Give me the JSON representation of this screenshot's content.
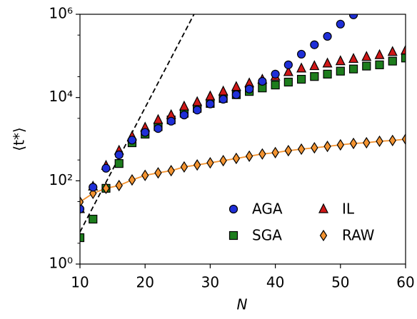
{
  "chart_data": {
    "type": "scatter",
    "xlabel": "N",
    "ylabel": "⟨t*⟩",
    "log_y": true,
    "x": [
      10,
      12,
      14,
      16,
      18,
      20,
      22,
      24,
      26,
      28,
      30,
      32,
      34,
      36,
      38,
      40,
      42,
      44,
      46,
      48,
      50,
      52,
      54,
      56,
      58,
      60
    ],
    "xlim": [
      10,
      60
    ],
    "xticks": [
      10,
      20,
      30,
      40,
      50,
      60
    ],
    "ylim": [
      1,
      1000000
    ],
    "yticks": [
      {
        "value": 1,
        "label": "10⁰"
      },
      {
        "value": 100,
        "label": "10²"
      },
      {
        "value": 10000,
        "label": "10⁴"
      },
      {
        "value": 1000000,
        "label": "10⁶"
      }
    ],
    "legend": "lower right",
    "series": [
      {
        "name": "AGA",
        "color": "#1f2fd8",
        "marker": "circle",
        "values": [
          21,
          70,
          200,
          420,
          950,
          1450,
          1800,
          2700,
          3800,
          5000,
          7000,
          9100,
          11700,
          16000,
          24500,
          36500,
          61000,
          110000,
          185000,
          295000,
          580000,
          970000,
          null,
          null,
          null,
          null
        ]
      },
      {
        "name": "SGA",
        "color": "#1d7d1d",
        "marker": "square",
        "values": [
          4.3,
          12,
          66,
          260,
          820,
          1320,
          2000,
          2900,
          4200,
          5500,
          7200,
          9500,
          11700,
          14000,
          17000,
          20000,
          23500,
          27500,
          32000,
          36500,
          43000,
          48500,
          57000,
          61000,
          75000,
          89000
        ]
      },
      {
        "name": "IL",
        "color": "#d01818",
        "marker": "triangle",
        "values": [
          21,
          73,
          230,
          530,
          1170,
          1900,
          2900,
          3800,
          6100,
          7800,
          10700,
          14000,
          18000,
          22000,
          27000,
          32000,
          41000,
          50000,
          57000,
          66000,
          75000,
          85000,
          95000,
          105000,
          125000,
          135000
        ]
      },
      {
        "name": "RAW",
        "color": "#f39330",
        "marker": "diamond",
        "line": true,
        "values": [
          31,
          50,
          66,
          77,
          105,
          135,
          155,
          175,
          215,
          240,
          270,
          305,
          345,
          390,
          440,
          475,
          530,
          575,
          620,
          670,
          730,
          790,
          820,
          890,
          930,
          1000
        ]
      }
    ],
    "reference_line": {
      "x": [
        10,
        28
      ],
      "values": [
        5.9,
        1400000
      ]
    }
  }
}
